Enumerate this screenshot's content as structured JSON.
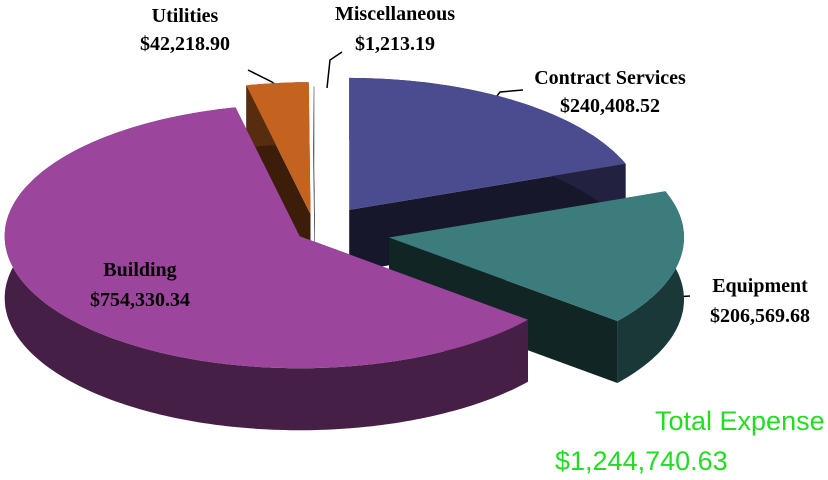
{
  "chart_data": {
    "type": "pie",
    "categories": [
      "Contract Services",
      "Equipment",
      "Building",
      "Utilities",
      "Miscellaneous"
    ],
    "values": [
      240408.52,
      206569.68,
      754330.34,
      42218.9,
      1213.19
    ],
    "value_labels": [
      "$240,408.52",
      "$206,569.68",
      "$754,330.34",
      "$42,218.90",
      "$1,213.19"
    ],
    "colors": [
      "#4b4b8f",
      "#3d7c7c",
      "#9c459c",
      "#c4621f",
      "#cfcfcf"
    ],
    "annotations": [
      "Total Expense",
      "$1,244,740.63"
    ]
  }
}
